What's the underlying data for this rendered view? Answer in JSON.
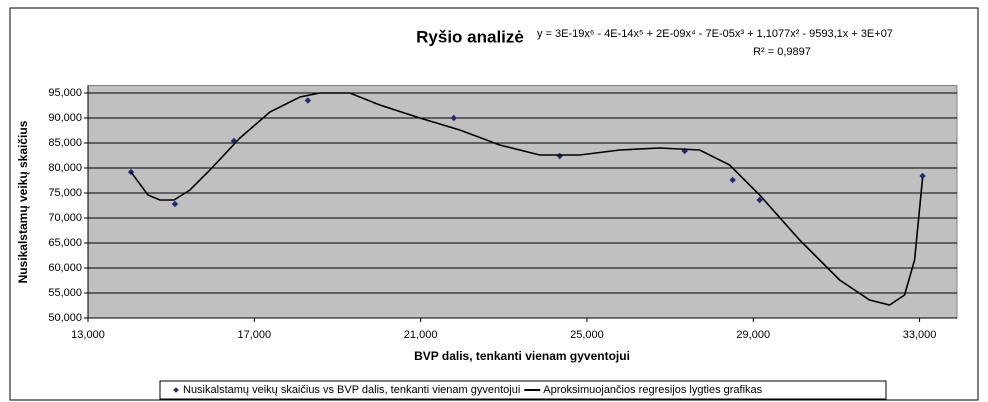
{
  "chart_data": {
    "type": "scatter",
    "title": "Ryšio analizė",
    "annotations": [
      "y = 3E-19x⁶ - 4E-14x⁵ + 2E-09x⁴ - 7E-05x³ + 1,1077x² - 9593,1x + 3E+07",
      "R² = 0,9897"
    ],
    "x_label": "BVP dalis, tenkanti vienam gyventojui",
    "y_label": "Nusikalstamų veikų skaičius",
    "xlim": [
      13000,
      33900
    ],
    "ylim": [
      50000,
      96500
    ],
    "xticks": [
      {
        "value": 13000,
        "label": "13,000"
      },
      {
        "value": 17000,
        "label": "17,000"
      },
      {
        "value": 21000,
        "label": "21,000"
      },
      {
        "value": 25000,
        "label": "25,000"
      },
      {
        "value": 29000,
        "label": "29,000"
      },
      {
        "value": 33000,
        "label": "33,000"
      }
    ],
    "yticks": [
      {
        "value": 50000,
        "label": "50,000"
      },
      {
        "value": 55000,
        "label": "55,000"
      },
      {
        "value": 60000,
        "label": "60,000"
      },
      {
        "value": 65000,
        "label": "65,000"
      },
      {
        "value": 70000,
        "label": "70,000"
      },
      {
        "value": 75000,
        "label": "75,000"
      },
      {
        "value": 80000,
        "label": "80,000"
      },
      {
        "value": 85000,
        "label": "85,000"
      },
      {
        "value": 90000,
        "label": "90,000"
      },
      {
        "value": 95000,
        "label": "95,000"
      }
    ],
    "grid": true,
    "plot_color": "#c0c0c0",
    "legend": "bottom",
    "series": [
      {
        "name": "Nusikalstamų veikų skaičius vs BVP dalis, tenkanti vienam gyventojui",
        "color": "#1f2a7a",
        "marker": "diamond",
        "x": [
          14034,
          15091,
          16510,
          18288,
          21798,
          24346,
          27351,
          28505,
          29154,
          33072
        ],
        "values": [
          79200,
          72800,
          85400,
          93500,
          90000,
          82400,
          83400,
          77600,
          73600,
          78400
        ]
      },
      {
        "name": "Aproksimuojančios regresijos lygties grafikas",
        "color": "#000000",
        "type": "line",
        "x": [
          14034,
          14442,
          14731,
          15067,
          15452,
          15933,
          16654,
          17375,
          18096,
          18577,
          19298,
          20019,
          20981,
          21942,
          22904,
          23865,
          24827,
          25788,
          26750,
          27712,
          28433,
          29154,
          30115,
          31077,
          31798,
          32279,
          32639,
          32880,
          33072
        ],
        "values": [
          79200,
          74600,
          73600,
          73600,
          75600,
          79600,
          86000,
          91200,
          94200,
          95000,
          95000,
          92600,
          90000,
          87600,
          84600,
          82600,
          82600,
          83600,
          84000,
          83600,
          80600,
          74600,
          65600,
          57600,
          53600,
          52600,
          54600,
          61600,
          78000
        ]
      }
    ]
  }
}
